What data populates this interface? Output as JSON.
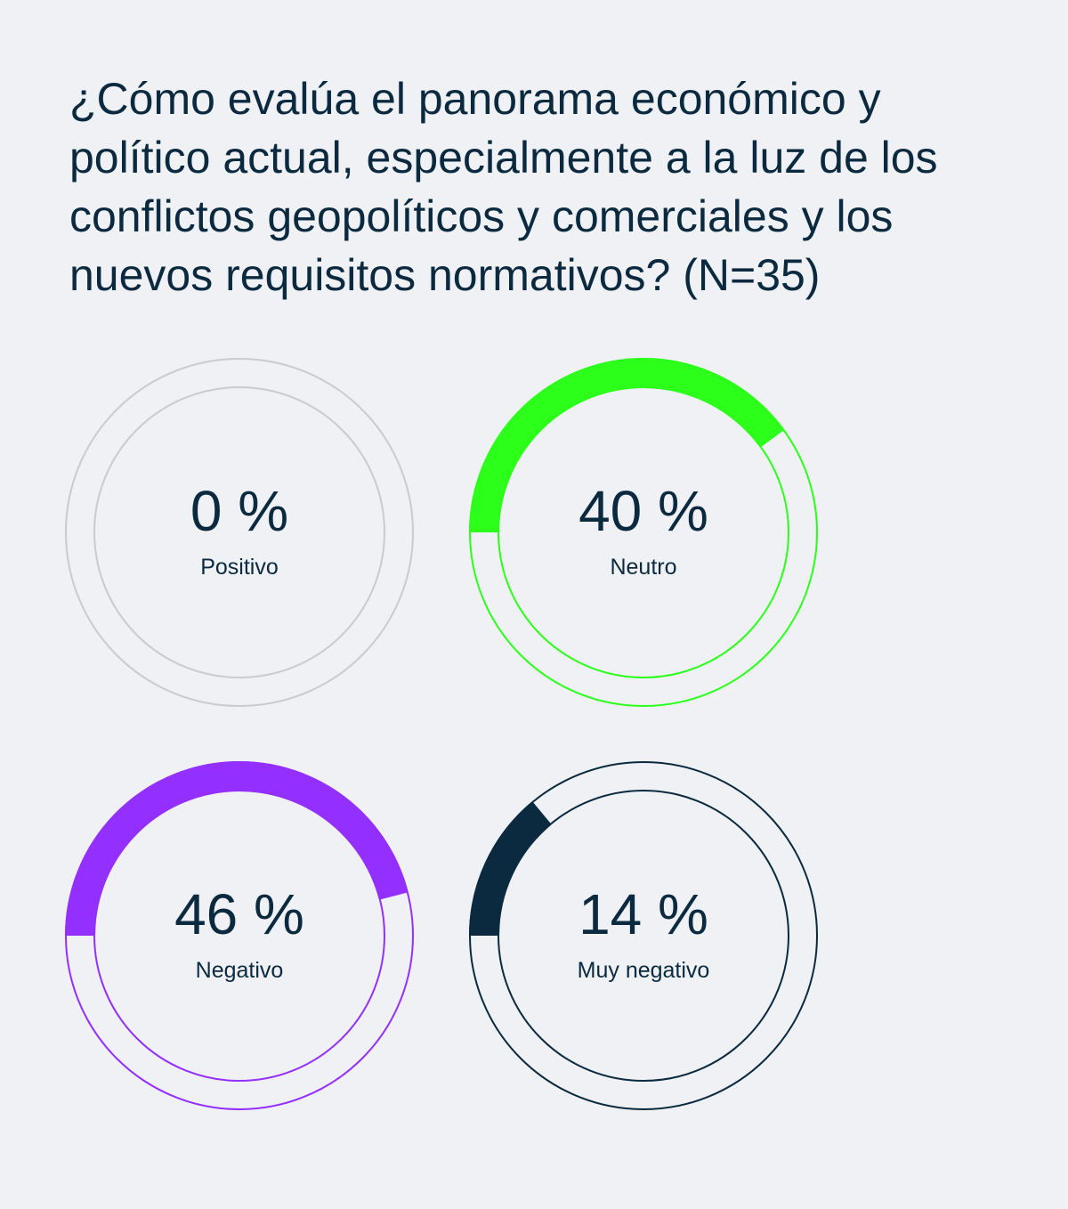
{
  "chart_data": {
    "type": "donut",
    "title": "¿Cómo evalúa el panorama económico y político actual, especialmente a la luz de los conflictos geopolíticos y comerciales y los nuevos requisitos normativos? (N=35)",
    "unit": "%",
    "items": [
      {
        "category": "Positivo",
        "value": 0,
        "value_label": "0 %",
        "color": "#c9cbcf"
      },
      {
        "category": "Neutro",
        "value": 40,
        "value_label": "40 %",
        "color": "#2bff1a"
      },
      {
        "category": "Negativo",
        "value": 46,
        "value_label": "46 %",
        "color": "#9330ff"
      },
      {
        "category": "Muy negativo",
        "value": 14,
        "value_label": "14 %",
        "color": "#0b2a40"
      }
    ]
  }
}
